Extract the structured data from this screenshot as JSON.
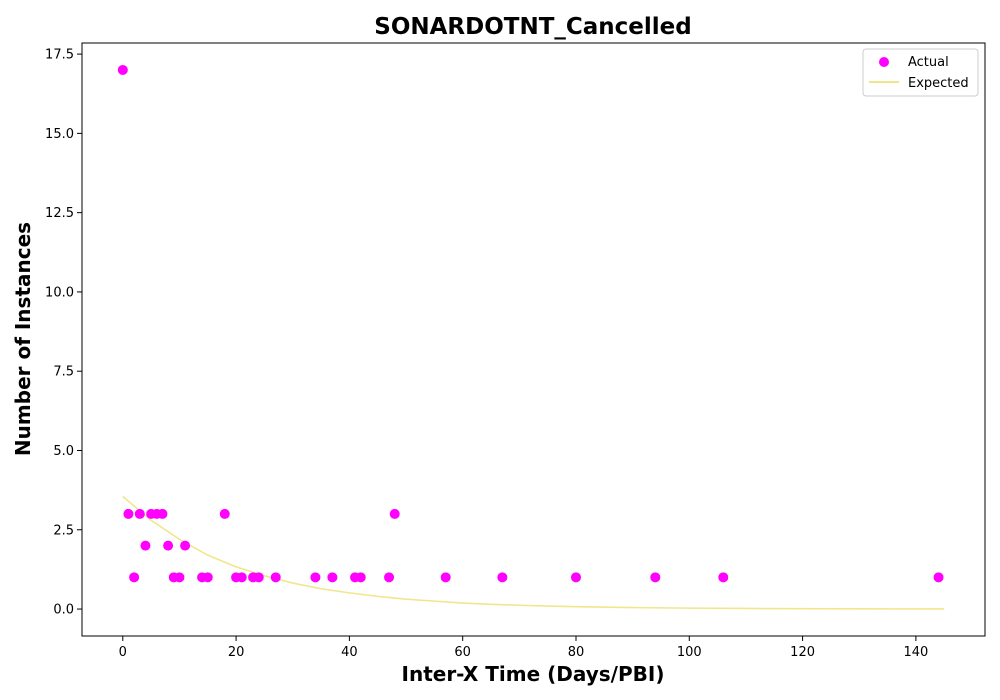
{
  "chart_data": {
    "type": "scatter",
    "title": "SONARDOTNT_Cancelled",
    "xlabel": "Inter-X Time (Days/PBI)",
    "ylabel": "Number of Instances",
    "xlim": [
      -7.2,
      152.2
    ],
    "ylim": [
      -0.85,
      17.85
    ],
    "xticks": [
      0,
      20,
      40,
      60,
      80,
      100,
      120,
      140
    ],
    "yticks": [
      0.0,
      2.5,
      5.0,
      7.5,
      10.0,
      12.5,
      15.0,
      17.5
    ],
    "xtick_labels": [
      "0",
      "20",
      "40",
      "60",
      "80",
      "100",
      "120",
      "140"
    ],
    "ytick_labels": [
      "0.0",
      "2.5",
      "5.0",
      "7.5",
      "10.0",
      "12.5",
      "15.0",
      "17.5"
    ],
    "grid": false,
    "legend": {
      "position": "top-right",
      "entries": [
        "Actual",
        "Expected"
      ]
    },
    "series": [
      {
        "name": "Actual",
        "type": "scatter",
        "color": "#ff00ff",
        "points": [
          [
            0,
            17
          ],
          [
            1,
            3
          ],
          [
            2,
            1
          ],
          [
            3,
            3
          ],
          [
            4,
            2
          ],
          [
            5,
            3
          ],
          [
            6,
            3
          ],
          [
            7,
            3
          ],
          [
            8,
            2
          ],
          [
            9,
            1
          ],
          [
            10,
            1
          ],
          [
            11,
            2
          ],
          [
            14,
            1
          ],
          [
            15,
            1
          ],
          [
            18,
            3
          ],
          [
            20,
            1
          ],
          [
            21,
            1
          ],
          [
            23,
            1
          ],
          [
            24,
            1
          ],
          [
            27,
            1
          ],
          [
            34,
            1
          ],
          [
            37,
            1
          ],
          [
            41,
            1
          ],
          [
            42,
            1
          ],
          [
            47,
            1
          ],
          [
            48,
            3
          ],
          [
            57,
            1
          ],
          [
            67,
            1
          ],
          [
            80,
            1
          ],
          [
            94,
            1
          ],
          [
            106,
            1
          ],
          [
            144,
            1
          ]
        ]
      },
      {
        "name": "Expected",
        "type": "line",
        "color": "#f0e68c",
        "points": [
          [
            0,
            3.55
          ],
          [
            5,
            2.8
          ],
          [
            10,
            2.2
          ],
          [
            15,
            1.7
          ],
          [
            20,
            1.33
          ],
          [
            25,
            1.05
          ],
          [
            30,
            0.82
          ],
          [
            35,
            0.64
          ],
          [
            40,
            0.51
          ],
          [
            45,
            0.4
          ],
          [
            50,
            0.31
          ],
          [
            55,
            0.25
          ],
          [
            60,
            0.19
          ],
          [
            65,
            0.15
          ],
          [
            70,
            0.12
          ],
          [
            75,
            0.095
          ],
          [
            80,
            0.075
          ],
          [
            90,
            0.046
          ],
          [
            100,
            0.029
          ],
          [
            110,
            0.018
          ],
          [
            120,
            0.011
          ],
          [
            130,
            0.007
          ],
          [
            145,
            0.003
          ]
        ]
      }
    ]
  }
}
